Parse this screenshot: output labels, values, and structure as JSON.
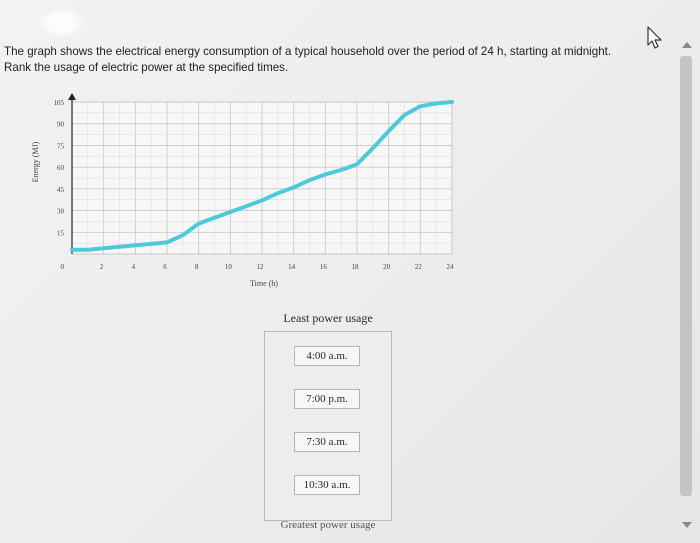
{
  "question": {
    "line1": "The graph shows the electrical energy consumption of a typical household over the period of 24 h, starting at midnight.",
    "line2": "Rank the usage of electric power at the specified times."
  },
  "chart_data": {
    "type": "line",
    "xlabel": "Time (h)",
    "ylabel": "Energy (MJ)",
    "xlim": [
      0,
      24
    ],
    "ylim": [
      0,
      105
    ],
    "x_ticks": [
      2,
      4,
      6,
      8,
      10,
      12,
      14,
      16,
      18,
      20,
      22,
      24
    ],
    "y_ticks": [
      15,
      30,
      45,
      60,
      75,
      90,
      105
    ],
    "origin_label": "0",
    "grid": true,
    "line_color": "#4fc9d9",
    "series": [
      {
        "x": [
          0,
          1,
          2,
          3,
          4,
          5,
          6,
          7,
          8,
          9,
          10,
          11,
          12,
          13,
          14,
          15,
          16,
          17,
          18,
          19,
          20,
          21,
          22,
          23,
          24
        ],
        "y": [
          3,
          3,
          4,
          5,
          6,
          7,
          8,
          13,
          21,
          25,
          29,
          33,
          37,
          42,
          46,
          51,
          55,
          58,
          62,
          73,
          85,
          96,
          102,
          104,
          105
        ]
      }
    ]
  },
  "ranking": {
    "top_label": "Least power usage",
    "bottom_label": "Greatest power usage",
    "items": [
      "4:00 a.m.",
      "7:00 p.m.",
      "7:30 a.m.",
      "10:30 a.m."
    ]
  },
  "icons": {
    "cursor": "mouse-pointer-icon",
    "scroll_up": "scroll-up-arrow-icon",
    "scroll_down": "scroll-down-arrow-icon"
  }
}
